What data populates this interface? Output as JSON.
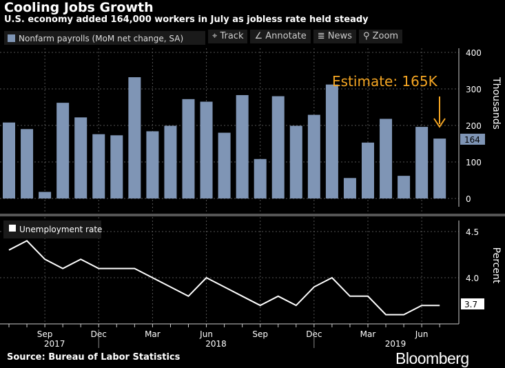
{
  "title": "Cooling Jobs Growth",
  "subtitle": "U.S. economy added 164,000 workers in July as jobless rate held steady",
  "source": "Source: Bureau of Labor Statistics",
  "logo": "Bloomberg",
  "toolbar": {
    "track": "Track",
    "annotate": "Annotate",
    "news": "News",
    "zoom": "Zoom"
  },
  "chart_data": [
    {
      "type": "bar",
      "legend": "Nonfarm payrolls (MoM net change, SA)",
      "ylabel": "Thousands",
      "ylim": [
        0,
        400
      ],
      "yticks": [
        "0",
        "100",
        "200",
        "300",
        "400"
      ],
      "color": "#7f95b5",
      "x": [
        "2017-07",
        "2017-08",
        "2017-09",
        "2017-10",
        "2017-11",
        "2017-12",
        "2018-01",
        "2018-02",
        "2018-03",
        "2018-04",
        "2018-05",
        "2018-06",
        "2018-07",
        "2018-08",
        "2018-09",
        "2018-10",
        "2018-11",
        "2018-12",
        "2019-01",
        "2019-02",
        "2019-03",
        "2019-04",
        "2019-05",
        "2019-06",
        "2019-07"
      ],
      "values": [
        208,
        190,
        18,
        262,
        222,
        176,
        173,
        332,
        184,
        199,
        272,
        265,
        180,
        283,
        108,
        280,
        199,
        229,
        312,
        56,
        153,
        218,
        62,
        196,
        164
      ],
      "last_label": "164",
      "annotation": "Estimate: 165K",
      "annotation_color": "#f5a623"
    },
    {
      "type": "line",
      "legend": "Unemployment rate",
      "ylabel": "Percent",
      "ylim": [
        3.5,
        4.6
      ],
      "yticks": [
        "4.0",
        "4.5"
      ],
      "color": "#ffffff",
      "values": [
        4.3,
        4.4,
        4.2,
        4.1,
        4.2,
        4.1,
        4.1,
        4.1,
        4.0,
        3.9,
        3.8,
        4.0,
        3.9,
        3.8,
        3.7,
        3.8,
        3.7,
        3.9,
        4.0,
        3.8,
        3.8,
        3.6,
        3.6,
        3.7,
        3.7
      ],
      "last_label": "3.7",
      "xticks": [
        "Sep",
        "Dec",
        "Mar",
        "Jun",
        "Sep",
        "Dec",
        "Mar",
        "Jun"
      ],
      "years": [
        "2017",
        "2018",
        "2019"
      ]
    }
  ]
}
